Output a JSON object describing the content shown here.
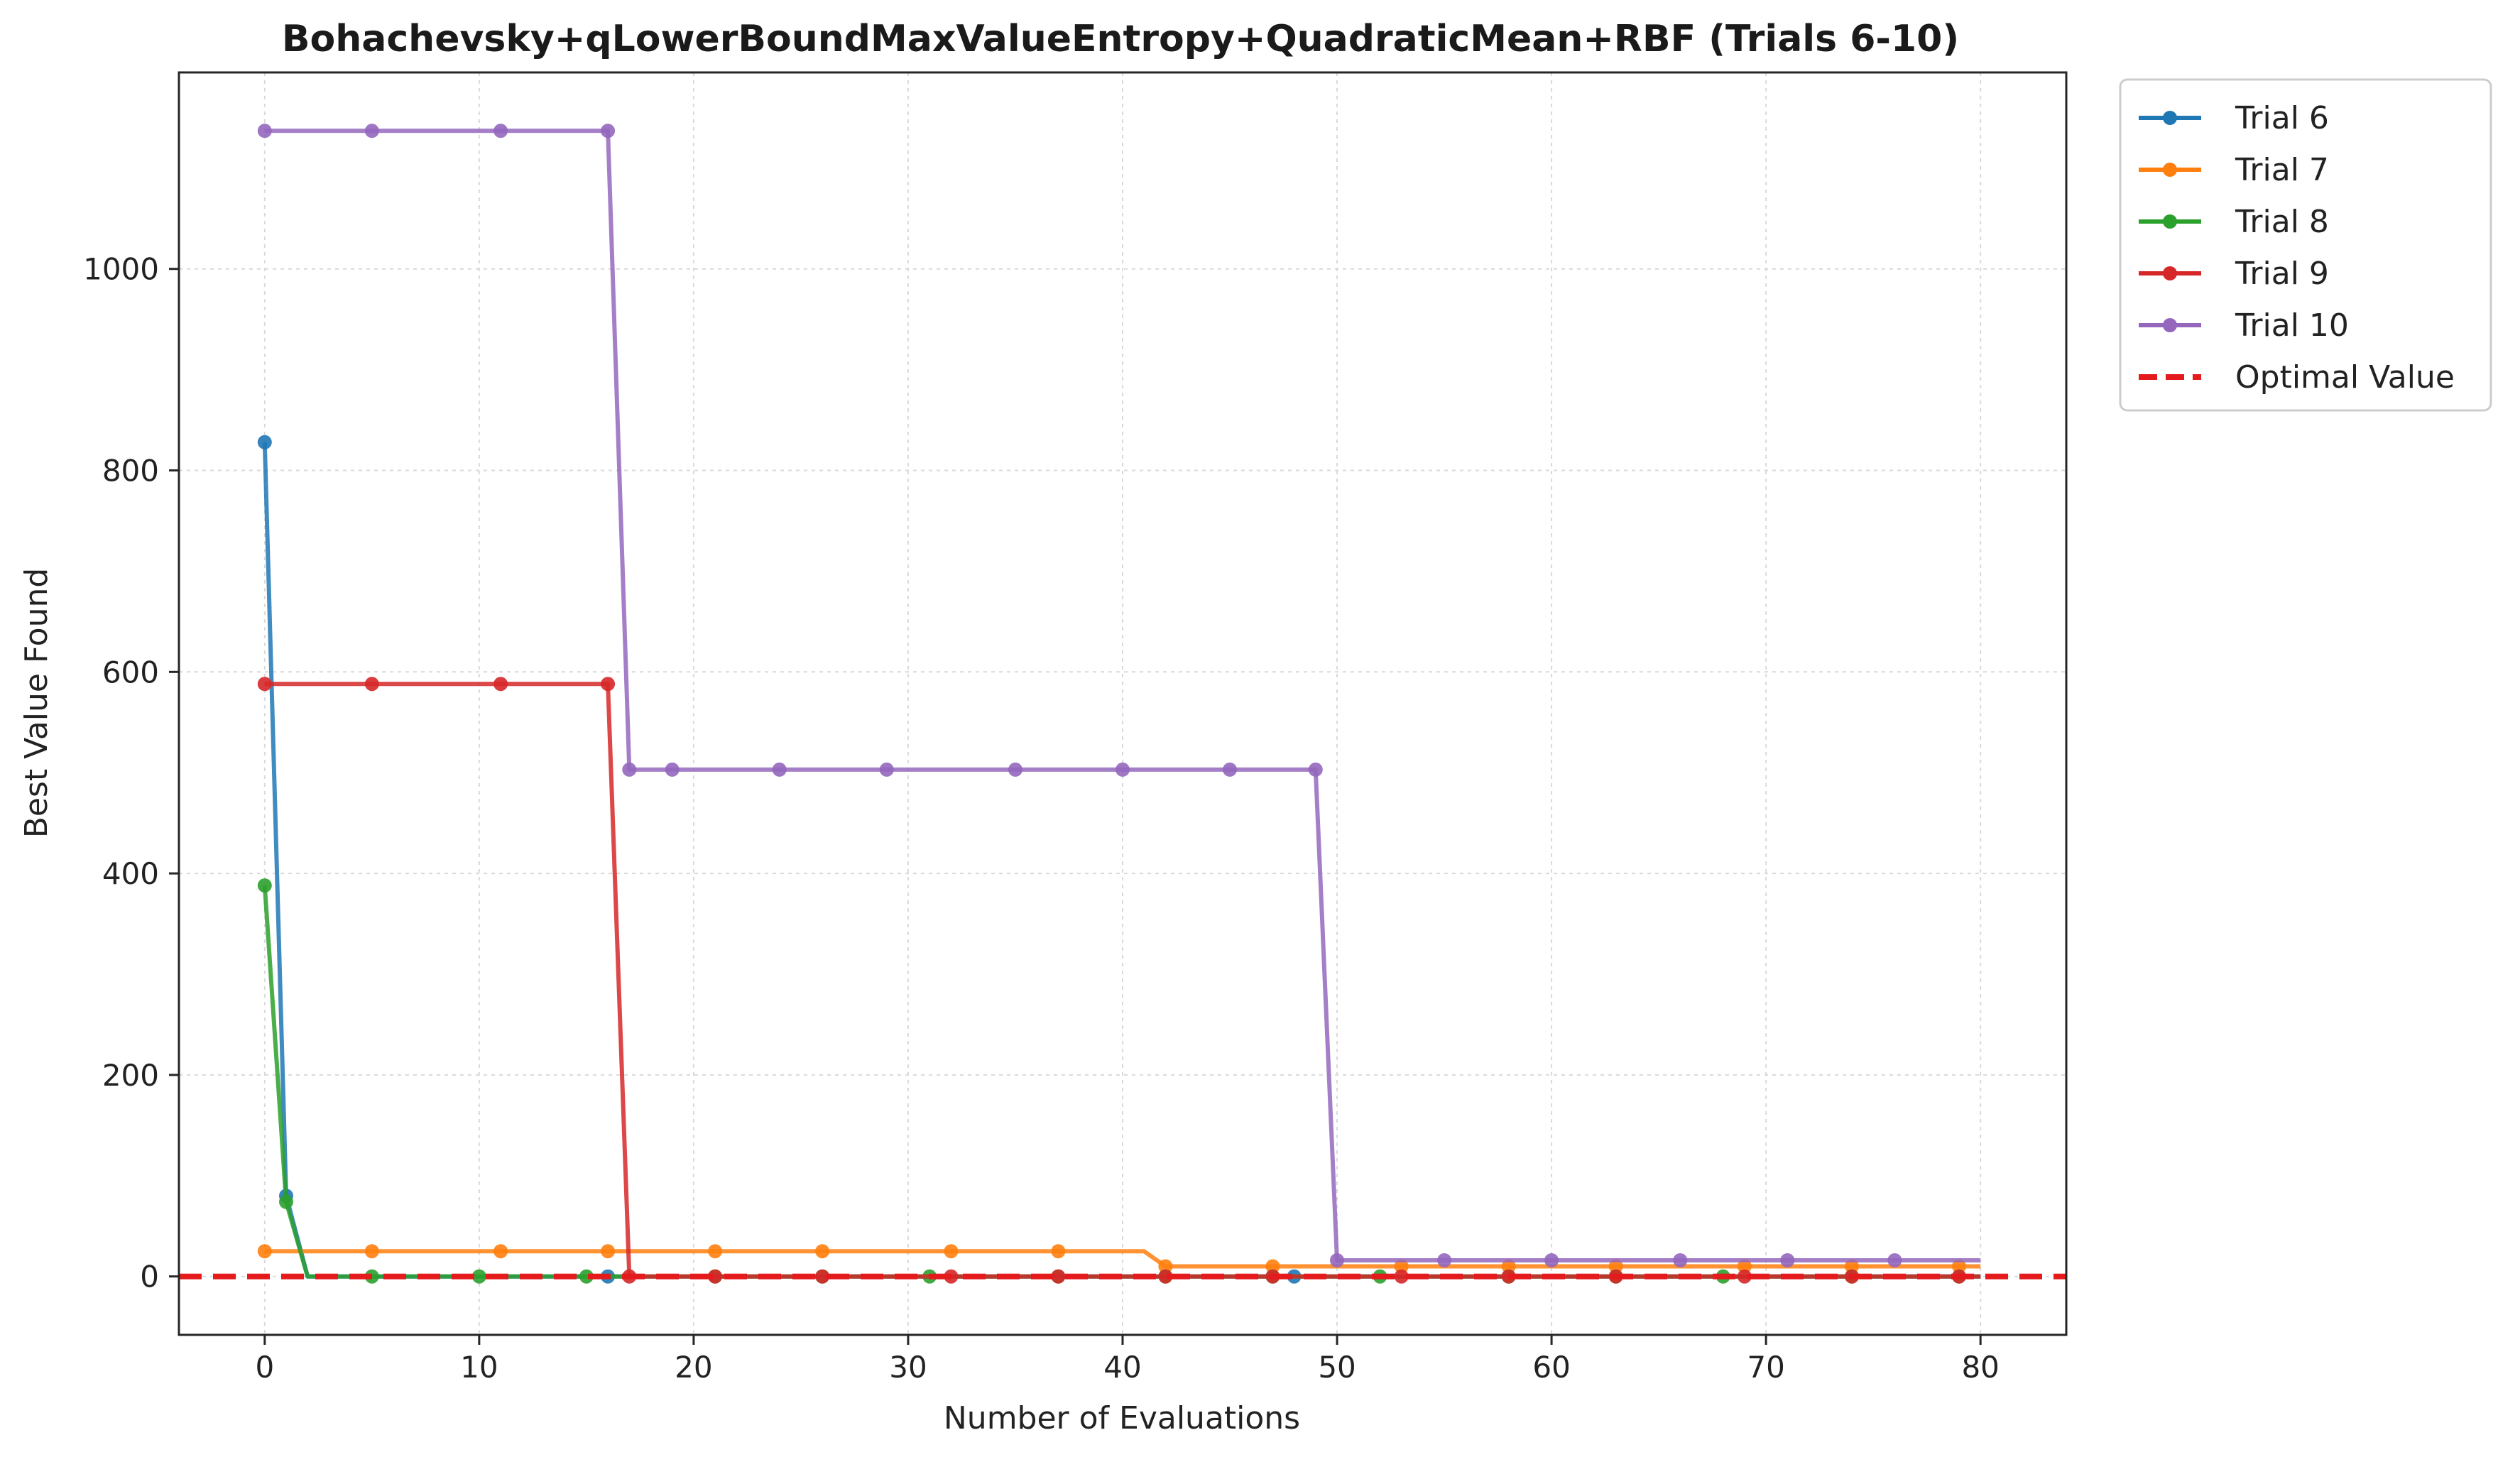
{
  "chart_data": {
    "type": "line",
    "title": "Bohachevsky+qLowerBoundMaxValueEntropy+QuadraticMean+RBF (Trials 6-10)",
    "xlabel": "Number of Evaluations",
    "ylabel": "Best Value Found",
    "xlim": [
      -4,
      84
    ],
    "ylim": [
      -58,
      1195
    ],
    "xticks": [
      0,
      10,
      20,
      30,
      40,
      50,
      60,
      70,
      80
    ],
    "yticks": [
      0,
      200,
      400,
      600,
      800,
      1000
    ],
    "grid": true,
    "legend_position": "outside-top-right",
    "optimal_value": {
      "name": "Optimal Value",
      "value": 0,
      "color": "#e41a1c",
      "style": "dashed"
    },
    "series": [
      {
        "name": "Trial 6",
        "color": "#1f77b4",
        "points": [
          [
            0,
            828
          ],
          [
            1,
            80
          ],
          [
            2,
            0
          ],
          [
            80,
            0
          ]
        ],
        "markers": [
          [
            0,
            828
          ],
          [
            1,
            80
          ],
          [
            16,
            0
          ],
          [
            48,
            0
          ]
        ]
      },
      {
        "name": "Trial 7",
        "color": "#ff7f0e",
        "points": [
          [
            0,
            25
          ],
          [
            41,
            25
          ],
          [
            42,
            10
          ],
          [
            80,
            10
          ]
        ],
        "markers": [
          [
            0,
            25
          ],
          [
            5,
            25
          ],
          [
            11,
            25
          ],
          [
            16,
            25
          ],
          [
            21,
            25
          ],
          [
            26,
            25
          ],
          [
            32,
            25
          ],
          [
            37,
            25
          ],
          [
            42,
            10
          ],
          [
            47,
            10
          ],
          [
            53,
            10
          ],
          [
            58,
            10
          ],
          [
            63,
            10
          ],
          [
            69,
            10
          ],
          [
            74,
            10
          ],
          [
            79,
            10
          ]
        ]
      },
      {
        "name": "Trial 8",
        "color": "#2ca02c",
        "points": [
          [
            0,
            388
          ],
          [
            1,
            74
          ],
          [
            2,
            0
          ],
          [
            80,
            0
          ]
        ],
        "markers": [
          [
            0,
            388
          ],
          [
            1,
            74
          ],
          [
            5,
            0
          ],
          [
            10,
            0
          ],
          [
            15,
            0
          ],
          [
            21,
            0
          ],
          [
            26,
            0
          ],
          [
            31,
            0
          ],
          [
            37,
            0
          ],
          [
            42,
            0
          ],
          [
            47,
            0
          ],
          [
            52,
            0
          ],
          [
            58,
            0
          ],
          [
            63,
            0
          ],
          [
            68,
            0
          ],
          [
            74,
            0
          ],
          [
            79,
            0
          ]
        ]
      },
      {
        "name": "Trial 9",
        "color": "#d62728",
        "points": [
          [
            0,
            588
          ],
          [
            16,
            588
          ],
          [
            17,
            0
          ],
          [
            80,
            0
          ]
        ],
        "markers": [
          [
            0,
            588
          ],
          [
            5,
            588
          ],
          [
            11,
            588
          ],
          [
            16,
            588
          ],
          [
            17,
            0
          ],
          [
            21,
            0
          ],
          [
            26,
            0
          ],
          [
            32,
            0
          ],
          [
            37,
            0
          ],
          [
            42,
            0
          ],
          [
            47,
            0
          ],
          [
            53,
            0
          ],
          [
            58,
            0
          ],
          [
            63,
            0
          ],
          [
            69,
            0
          ],
          [
            74,
            0
          ],
          [
            79,
            0
          ]
        ]
      },
      {
        "name": "Trial 10",
        "color": "#9467bd",
        "points": [
          [
            0,
            1137
          ],
          [
            16,
            1137
          ],
          [
            17,
            503
          ],
          [
            49,
            503
          ],
          [
            50,
            16
          ],
          [
            80,
            16
          ]
        ],
        "markers": [
          [
            0,
            1137
          ],
          [
            5,
            1137
          ],
          [
            11,
            1137
          ],
          [
            16,
            1137
          ],
          [
            17,
            503
          ],
          [
            19,
            503
          ],
          [
            24,
            503
          ],
          [
            29,
            503
          ],
          [
            35,
            503
          ],
          [
            40,
            503
          ],
          [
            45,
            503
          ],
          [
            49,
            503
          ],
          [
            50,
            16
          ],
          [
            55,
            16
          ],
          [
            60,
            16
          ],
          [
            66,
            16
          ],
          [
            71,
            16
          ],
          [
            76,
            16
          ]
        ]
      }
    ]
  }
}
